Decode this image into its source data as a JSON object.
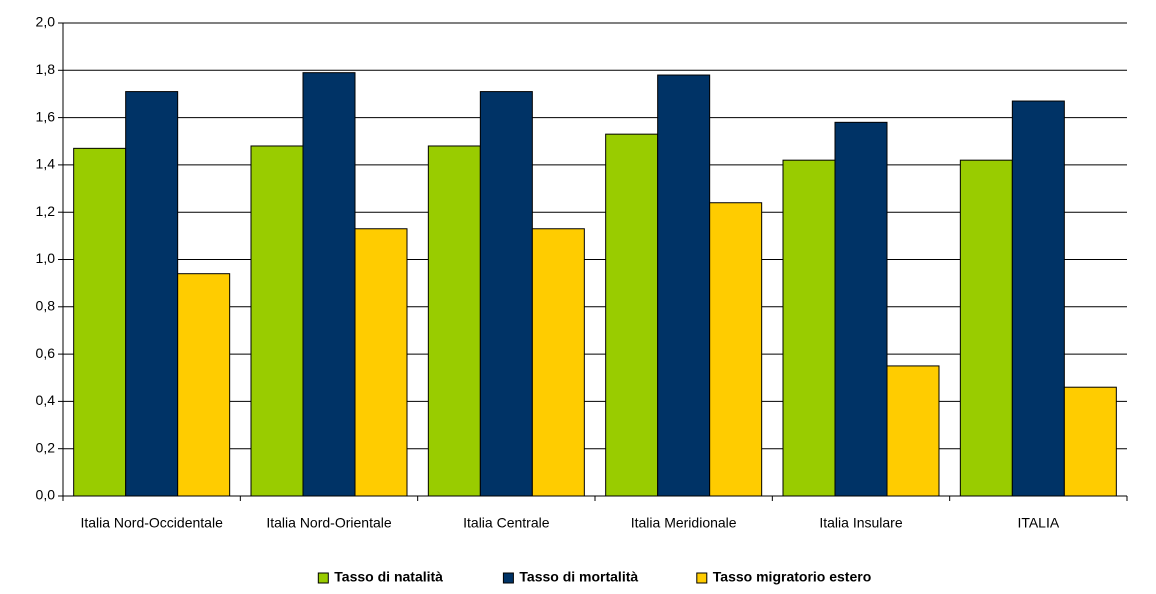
{
  "chart_data": {
    "type": "bar",
    "categories": [
      "Italia Nord-Occidentale",
      "Italia Nord-Orientale",
      "Italia Centrale",
      "Italia Meridionale",
      "Italia Insulare",
      "ITALIA"
    ],
    "series": [
      {
        "name": "Tasso di natalità",
        "color": "#99cc00",
        "values": [
          1.47,
          1.48,
          1.48,
          1.53,
          1.42,
          1.42
        ]
      },
      {
        "name": "Tasso di mortalità",
        "color": "#003366",
        "values": [
          1.71,
          1.79,
          1.71,
          1.78,
          1.58,
          1.67
        ]
      },
      {
        "name": "Tasso migratorio estero",
        "color": "#ffcc00",
        "values": [
          0.94,
          1.13,
          1.13,
          1.24,
          0.55,
          0.46
        ]
      }
    ],
    "ylim": [
      0,
      2
    ],
    "yticks": [
      {
        "value": 0,
        "label": "0,0"
      },
      {
        "value": 0.2,
        "label": "0,2"
      },
      {
        "value": 0.4,
        "label": "0,4"
      },
      {
        "value": 0.6,
        "label": "0,6"
      },
      {
        "value": 0.8,
        "label": "0,8"
      },
      {
        "value": 1,
        "label": "1,0"
      },
      {
        "value": 1.2,
        "label": "1,2"
      },
      {
        "value": 1.4,
        "label": "1,4"
      },
      {
        "value": 1.6,
        "label": "1,6"
      },
      {
        "value": 1.8,
        "label": "1,8"
      },
      {
        "value": 2,
        "label": "2,0"
      }
    ],
    "grid": true,
    "legend": "bottom"
  }
}
